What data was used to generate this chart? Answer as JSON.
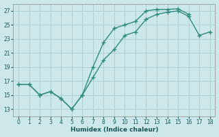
{
  "steep_x": [
    0,
    1,
    2,
    3,
    4,
    5,
    6,
    7,
    8,
    9,
    10,
    11,
    12,
    13,
    14,
    15,
    16
  ],
  "steep_y": [
    16.5,
    16.5,
    15.0,
    15.5,
    14.5,
    13.0,
    15.0,
    19.0,
    22.5,
    24.5,
    25.0,
    25.5,
    27.0,
    27.2,
    27.2,
    27.3,
    26.5
  ],
  "gradual_x": [
    0,
    1,
    2,
    3,
    4,
    5,
    6,
    7,
    8,
    9,
    10,
    11,
    12,
    13,
    14,
    15,
    16,
    17,
    18
  ],
  "gradual_y": [
    16.5,
    16.5,
    15.0,
    15.5,
    14.5,
    13.0,
    15.0,
    17.5,
    20.0,
    21.5,
    23.5,
    24.0,
    25.8,
    26.5,
    26.8,
    27.0,
    26.2,
    23.5,
    24.0
  ],
  "line_color": "#2e8b7a",
  "bg_color": "#cce8e8",
  "grid_color": "#aacccc",
  "xlabel": "Humidex (Indice chaleur)",
  "ylim": [
    12,
    28
  ],
  "xlim_min": -0.5,
  "xlim_max": 18.5,
  "yticks": [
    13,
    15,
    17,
    19,
    21,
    23,
    25,
    27
  ],
  "xticks": [
    0,
    1,
    2,
    3,
    4,
    5,
    6,
    7,
    8,
    9,
    10,
    11,
    12,
    13,
    14,
    15,
    16,
    17,
    18
  ],
  "tick_color": "#1a5555",
  "xlabel_color": "#1a5555"
}
